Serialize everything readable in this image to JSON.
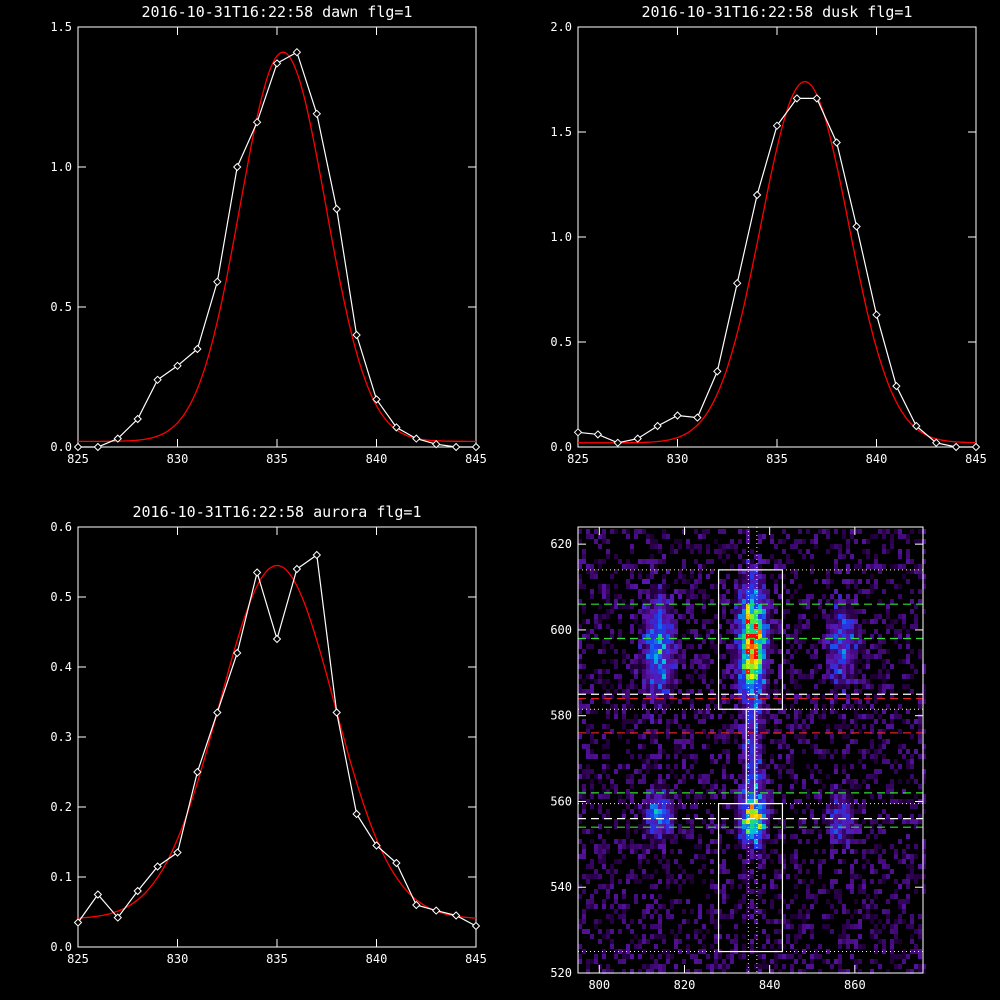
{
  "chart_data": [
    {
      "type": "line",
      "title": "2016-10-31T16:22:58 dawn flg=1",
      "xlim": [
        825,
        845
      ],
      "ylim": [
        0,
        1.5
      ],
      "xticks": [
        "825",
        "830",
        "835",
        "840",
        "845"
      ],
      "yticks": [
        "0.0",
        "0.5",
        "1.0",
        "1.5"
      ],
      "series": [
        {
          "style": "white-line-diamonds",
          "x": [
            825,
            826,
            827,
            828,
            829,
            830,
            831,
            832,
            833,
            834,
            835,
            836,
            837,
            838,
            839,
            840,
            841,
            842,
            843,
            844,
            845
          ],
          "y": [
            0.0,
            0.0,
            0.03,
            0.1,
            0.24,
            0.29,
            0.35,
            0.59,
            1.0,
            1.16,
            1.37,
            1.41,
            1.19,
            0.85,
            0.4,
            0.17,
            0.07,
            0.03,
            0.01,
            0.0,
            0.0
          ]
        },
        {
          "style": "red-gaussian-fit",
          "amplitude": 1.39,
          "center": 835.3,
          "sigma": 2.15,
          "offset": 0.02
        }
      ],
      "colors": {
        "data": "#ffffff",
        "fit": "#ff0000"
      }
    },
    {
      "type": "line",
      "title": "2016-10-31T16:22:58 dusk flg=1",
      "xlim": [
        825,
        845
      ],
      "ylim": [
        0,
        2.0
      ],
      "xticks": [
        "825",
        "830",
        "835",
        "840",
        "845"
      ],
      "yticks": [
        "0.0",
        "0.5",
        "1.0",
        "1.5",
        "2.0"
      ],
      "series": [
        {
          "style": "white-line-diamonds",
          "x": [
            825,
            826,
            827,
            828,
            829,
            830,
            831,
            832,
            833,
            834,
            835,
            836,
            837,
            838,
            839,
            840,
            841,
            842,
            843,
            844,
            845
          ],
          "y": [
            0.07,
            0.06,
            0.02,
            0.04,
            0.1,
            0.15,
            0.14,
            0.36,
            0.78,
            1.2,
            1.53,
            1.66,
            1.66,
            1.45,
            1.05,
            0.63,
            0.29,
            0.1,
            0.02,
            0.0,
            0.0
          ]
        },
        {
          "style": "red-gaussian-fit",
          "amplitude": 1.72,
          "center": 836.4,
          "sigma": 2.2,
          "offset": 0.02
        }
      ],
      "colors": {
        "data": "#ffffff",
        "fit": "#ff0000"
      }
    },
    {
      "type": "line",
      "title": "2016-10-31T16:22:58 aurora flg=1",
      "xlim": [
        825,
        845
      ],
      "ylim": [
        0,
        0.6
      ],
      "xticks": [
        "825",
        "830",
        "835",
        "840",
        "845"
      ],
      "yticks": [
        "0.0",
        "0.1",
        "0.2",
        "0.3",
        "0.4",
        "0.5",
        "0.6"
      ],
      "series": [
        {
          "style": "white-line-diamonds",
          "x": [
            825,
            826,
            827,
            828,
            829,
            830,
            831,
            832,
            833,
            834,
            835,
            836,
            837,
            838,
            839,
            840,
            841,
            842,
            843,
            844,
            845
          ],
          "y": [
            0.035,
            0.075,
            0.042,
            0.08,
            0.115,
            0.135,
            0.25,
            0.335,
            0.42,
            0.535,
            0.44,
            0.54,
            0.56,
            0.335,
            0.19,
            0.145,
            0.12,
            0.06,
            0.052,
            0.045,
            0.03
          ]
        },
        {
          "style": "red-gaussian-fit",
          "amplitude": 0.505,
          "center": 835.0,
          "sigma": 2.9,
          "offset": 0.04
        }
      ],
      "colors": {
        "data": "#ffffff",
        "fit": "#ff0000"
      }
    },
    {
      "type": "heatmap",
      "title": "",
      "xlim": [
        795,
        876
      ],
      "ylim": [
        520,
        624
      ],
      "xticks": [
        "800",
        "820",
        "840",
        "860"
      ],
      "yticks": [
        "520",
        "540",
        "560",
        "580",
        "600",
        "620"
      ],
      "blobs": [
        {
          "x": 814,
          "y": 596,
          "sx": 2.5,
          "sy": 8,
          "amp": 0.55
        },
        {
          "x": 836,
          "y": 597,
          "sx": 2.2,
          "sy": 9,
          "amp": 1.0
        },
        {
          "x": 857,
          "y": 596,
          "sx": 2.5,
          "sy": 7,
          "amp": 0.35
        },
        {
          "x": 814,
          "y": 557,
          "sx": 2.2,
          "sy": 4,
          "amp": 0.5
        },
        {
          "x": 836,
          "y": 556,
          "sx": 2.2,
          "sy": 4,
          "amp": 0.75
        },
        {
          "x": 857,
          "y": 556,
          "sx": 2.2,
          "sy": 4,
          "amp": 0.35
        },
        {
          "x": 836,
          "y": 570,
          "sx": 1.6,
          "sy": 8,
          "amp": 0.35
        }
      ],
      "boxes": [
        {
          "x0": 828,
          "x1": 843,
          "y0": 581.5,
          "y1": 614
        },
        {
          "x0": 828,
          "x1": 843,
          "y0": 525,
          "y1": 559.5
        },
        {
          "x0": 834.5,
          "x1": 836.5,
          "y0": 559.5,
          "y1": 581.5
        }
      ],
      "dotted_h": [
        614,
        581.5,
        559.5,
        525
      ],
      "dotted_v": [
        835,
        837
      ],
      "dashed_green": [
        606,
        598,
        562,
        554
      ],
      "dashed_white": [
        585,
        556
      ],
      "dashed_red": [
        584,
        576
      ],
      "colors": {
        "green": "#33dd33",
        "white": "#ffffff",
        "red": "#dd2222",
        "dotted": "#ffff99"
      }
    }
  ]
}
